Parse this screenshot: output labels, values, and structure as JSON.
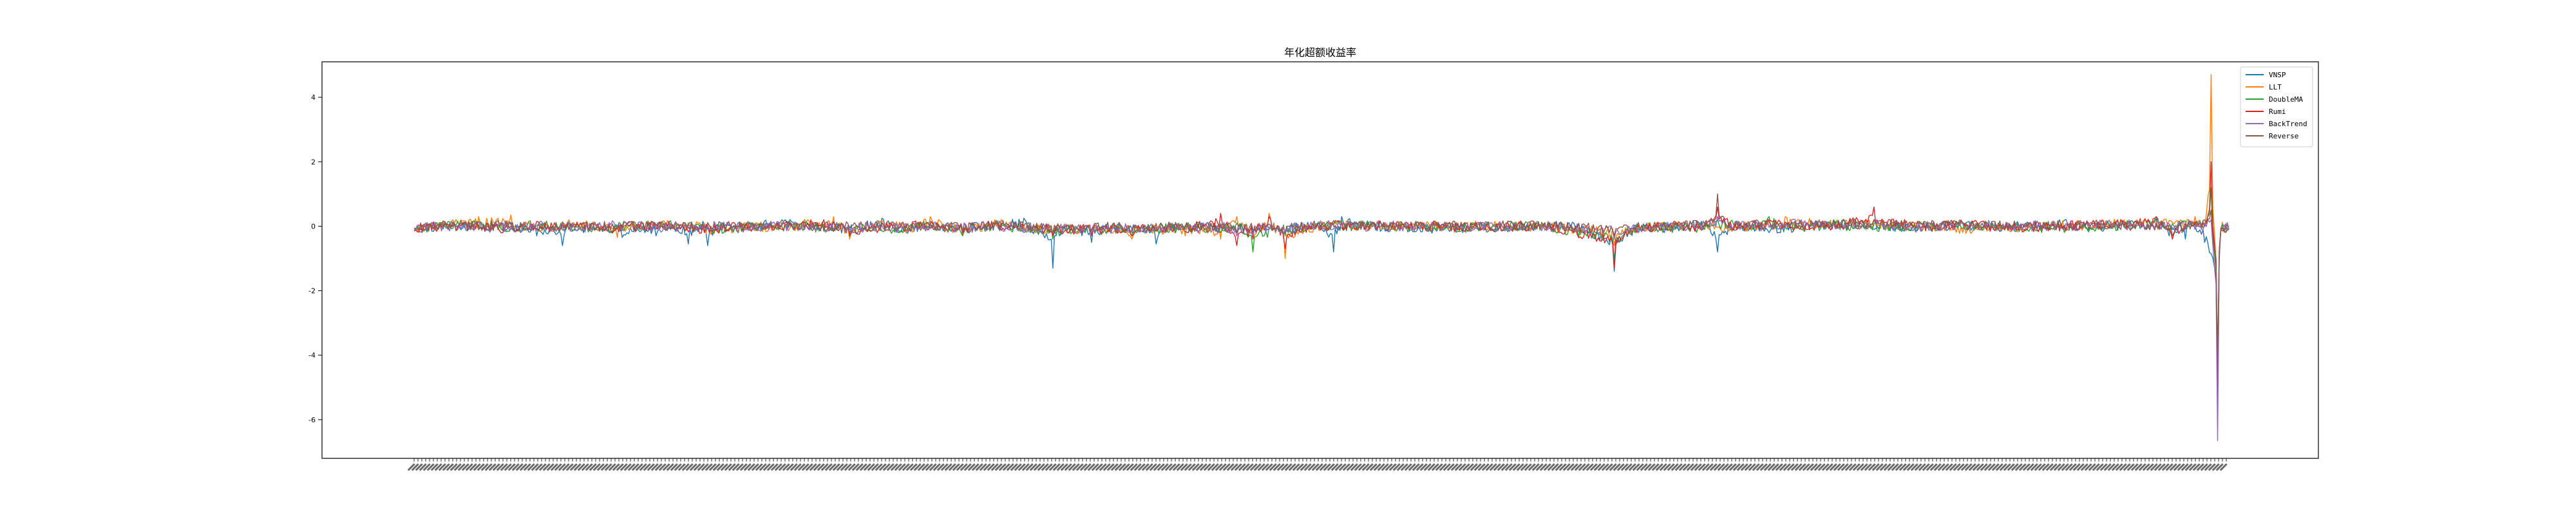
{
  "chart_data": {
    "type": "line",
    "title": "年化超额收益率",
    "xlabel": "",
    "ylabel": "",
    "ylim": [
      -7.2,
      5.1
    ],
    "yticks": [
      -6,
      -4,
      -2,
      0,
      2,
      4
    ],
    "legend_position": "top-right",
    "grid": false,
    "x_count": 300,
    "series": [
      {
        "name": "VNSP",
        "color": "#1f77b4",
        "events": [
          [
            0,
            -0.1
          ],
          [
            55,
            0.1
          ],
          [
            76,
            -0.3
          ],
          [
            92,
            -0.6
          ],
          [
            96,
            0.1
          ],
          [
            100,
            -0.12
          ],
          [
            108,
            -0.18
          ],
          [
            120,
            -0.1
          ],
          [
            129,
            -0.35
          ],
          [
            150,
            -0.3
          ],
          [
            160,
            0.05
          ],
          [
            170,
            -0.55
          ],
          [
            180,
            0.05
          ],
          [
            182,
            -0.6
          ],
          [
            190,
            -0.1
          ],
          [
            230,
            0.2
          ],
          [
            260,
            -0.1
          ],
          [
            270,
            -0.3
          ],
          [
            290,
            0.25
          ],
          [
            300,
            -0.1
          ],
          [
            305,
            -0.2
          ],
          [
            318,
            0.1
          ],
          [
            340,
            -0.25
          ],
          [
            360,
            0.1
          ],
          [
            378,
            0.25
          ],
          [
            396,
            -1.3
          ],
          [
            400,
            -0.3
          ],
          [
            420,
            -0.5
          ],
          [
            435,
            -0.1
          ],
          [
            460,
            -0.55
          ],
          [
            480,
            0.05
          ],
          [
            520,
            -0.2
          ],
          [
            540,
            -0.2
          ],
          [
            560,
            0.1
          ],
          [
            570,
            -0.8
          ],
          [
            575,
            0.3
          ],
          [
            600,
            -0.1
          ],
          [
            650,
            -0.2
          ],
          [
            700,
            0.05
          ],
          [
            720,
            -0.05
          ],
          [
            744,
            -1.4
          ],
          [
            760,
            -0.1
          ],
          [
            775,
            -0.2
          ],
          [
            800,
            0.1
          ],
          [
            808,
            -0.8
          ],
          [
            819,
            0.1
          ],
          [
            840,
            -0.2
          ],
          [
            880,
            0.1
          ],
          [
            900,
            0.0
          ],
          [
            940,
            -0.1
          ],
          [
            960,
            0.1
          ],
          [
            980,
            -0.05
          ],
          [
            1020,
            0.2
          ],
          [
            1040,
            -0.1
          ],
          [
            1080,
            0.25
          ],
          [
            1088,
            -0.3
          ],
          [
            1093,
            -0.2
          ],
          [
            1098,
            -0.4
          ],
          [
            1102,
            0.1
          ],
          [
            1110,
            -0.5
          ],
          [
            1118,
            -4.7
          ],
          [
            1120,
            -0.05
          ],
          [
            1125,
            -0.05
          ]
        ]
      },
      {
        "name": "LLT",
        "color": "#ff7f0e",
        "events": [
          [
            0,
            -0.15
          ],
          [
            40,
            0.3
          ],
          [
            60,
            0.35
          ],
          [
            80,
            -0.1
          ],
          [
            96,
            0.2
          ],
          [
            108,
            0.05
          ],
          [
            126,
            -0.35
          ],
          [
            150,
            0.05
          ],
          [
            170,
            0.05
          ],
          [
            184,
            -0.25
          ],
          [
            200,
            -0.15
          ],
          [
            230,
            0.05
          ],
          [
            260,
            0.3
          ],
          [
            270,
            -0.4
          ],
          [
            290,
            0.2
          ],
          [
            305,
            -0.2
          ],
          [
            320,
            0.3
          ],
          [
            340,
            -0.3
          ],
          [
            360,
            0.2
          ],
          [
            390,
            -0.2
          ],
          [
            396,
            -0.3
          ],
          [
            410,
            -0.2
          ],
          [
            445,
            -0.4
          ],
          [
            478,
            -0.3
          ],
          [
            500,
            -0.4
          ],
          [
            510,
            0.3
          ],
          [
            520,
            -0.4
          ],
          [
            530,
            0.4
          ],
          [
            540,
            -1.0
          ],
          [
            560,
            0.05
          ],
          [
            600,
            0.05
          ],
          [
            650,
            0.05
          ],
          [
            700,
            -0.05
          ],
          [
            744,
            -0.6
          ],
          [
            760,
            -0.1
          ],
          [
            800,
            0.1
          ],
          [
            820,
            -0.1
          ],
          [
            850,
            0.3
          ],
          [
            880,
            0.2
          ],
          [
            905,
            0.2
          ],
          [
            960,
            -0.2
          ],
          [
            1020,
            0.05
          ],
          [
            1060,
            0.2
          ],
          [
            1095,
            0.2
          ],
          [
            1104,
            0.3
          ],
          [
            1110,
            0.0
          ],
          [
            1114,
            4.7
          ],
          [
            1118,
            -6.0
          ],
          [
            1120,
            -0.1
          ],
          [
            1125,
            -0.1
          ]
        ]
      },
      {
        "name": "DoubleMA",
        "color": "#2ca02c",
        "events": [
          [
            0,
            -0.1
          ],
          [
            30,
            0.1
          ],
          [
            60,
            -0.05
          ],
          [
            80,
            0.1
          ],
          [
            96,
            0.1
          ],
          [
            108,
            -0.15
          ],
          [
            122,
            -0.2
          ],
          [
            140,
            0.05
          ],
          [
            170,
            0.05
          ],
          [
            180,
            -0.2
          ],
          [
            200,
            -0.15
          ],
          [
            230,
            0.05
          ],
          [
            270,
            -0.2
          ],
          [
            300,
            -0.2
          ],
          [
            320,
            0.1
          ],
          [
            340,
            -0.3
          ],
          [
            360,
            0.1
          ],
          [
            396,
            -0.4
          ],
          [
            420,
            -0.2
          ],
          [
            445,
            -0.3
          ],
          [
            478,
            -0.1
          ],
          [
            500,
            -0.2
          ],
          [
            510,
            0.1
          ],
          [
            520,
            -0.8
          ],
          [
            540,
            -0.3
          ],
          [
            560,
            0.05
          ],
          [
            600,
            0.05
          ],
          [
            650,
            -0.1
          ],
          [
            700,
            0.05
          ],
          [
            744,
            -1.1
          ],
          [
            760,
            -0.1
          ],
          [
            800,
            -0.1
          ],
          [
            808,
            0.2
          ],
          [
            830,
            -0.1
          ],
          [
            840,
            0.3
          ],
          [
            860,
            -0.1
          ],
          [
            880,
            0.2
          ],
          [
            900,
            -0.1
          ],
          [
            950,
            0.1
          ],
          [
            1000,
            -0.1
          ],
          [
            1040,
            -0.1
          ],
          [
            1080,
            0.2
          ],
          [
            1095,
            0.1
          ],
          [
            1104,
            0.1
          ],
          [
            1110,
            0.0
          ],
          [
            1114,
            1.2
          ],
          [
            1118,
            -5.6
          ],
          [
            1120,
            -0.1
          ],
          [
            1125,
            -0.1
          ]
        ]
      },
      {
        "name": "Rumi",
        "color": "#d62728",
        "events": [
          [
            0,
            -0.15
          ],
          [
            30,
            0.1
          ],
          [
            55,
            -0.2
          ],
          [
            76,
            0.15
          ],
          [
            92,
            0.05
          ],
          [
            108,
            -0.1
          ],
          [
            122,
            -0.15
          ],
          [
            150,
            0.05
          ],
          [
            180,
            -0.2
          ],
          [
            200,
            -0.1
          ],
          [
            230,
            0.1
          ],
          [
            260,
            0.15
          ],
          [
            270,
            -0.3
          ],
          [
            300,
            -0.1
          ],
          [
            320,
            0.1
          ],
          [
            340,
            -0.2
          ],
          [
            360,
            0.1
          ],
          [
            396,
            -0.3
          ],
          [
            420,
            -0.3
          ],
          [
            445,
            -0.3
          ],
          [
            480,
            -0.2
          ],
          [
            500,
            0.4
          ],
          [
            510,
            -0.6
          ],
          [
            520,
            -0.4
          ],
          [
            530,
            0.3
          ],
          [
            540,
            -0.7
          ],
          [
            560,
            0.05
          ],
          [
            600,
            0.05
          ],
          [
            650,
            -0.1
          ],
          [
            700,
            0.05
          ],
          [
            744,
            -1.3
          ],
          [
            760,
            -0.1
          ],
          [
            800,
            0.0
          ],
          [
            808,
            0.6
          ],
          [
            820,
            -0.1
          ],
          [
            840,
            0.2
          ],
          [
            860,
            0.0
          ],
          [
            880,
            0.1
          ],
          [
            905,
            0.6
          ],
          [
            930,
            0.0
          ],
          [
            960,
            0.1
          ],
          [
            1000,
            -0.1
          ],
          [
            1040,
            0.1
          ],
          [
            1080,
            0.3
          ],
          [
            1090,
            -0.4
          ],
          [
            1100,
            0.1
          ],
          [
            1110,
            0.0
          ],
          [
            1114,
            2.0
          ],
          [
            1118,
            -5.0
          ],
          [
            1120,
            -0.1
          ],
          [
            1125,
            0.0
          ]
        ]
      },
      {
        "name": "BackTrend",
        "color": "#9467bd",
        "events": [
          [
            0,
            -0.1
          ],
          [
            30,
            0.05
          ],
          [
            60,
            -0.1
          ],
          [
            80,
            0.05
          ],
          [
            100,
            -0.1
          ],
          [
            122,
            0.05
          ],
          [
            150,
            -0.1
          ],
          [
            180,
            0.05
          ],
          [
            200,
            -0.1
          ],
          [
            230,
            0.05
          ],
          [
            270,
            -0.1
          ],
          [
            300,
            -0.1
          ],
          [
            320,
            0.05
          ],
          [
            340,
            -0.15
          ],
          [
            360,
            0.05
          ],
          [
            396,
            -0.2
          ],
          [
            420,
            -0.2
          ],
          [
            445,
            -0.2
          ],
          [
            480,
            -0.1
          ],
          [
            510,
            -0.3
          ],
          [
            520,
            -0.3
          ],
          [
            540,
            -0.2
          ],
          [
            560,
            0.05
          ],
          [
            600,
            0.0
          ],
          [
            650,
            -0.05
          ],
          [
            700,
            0.0
          ],
          [
            744,
            -0.4
          ],
          [
            760,
            -0.1
          ],
          [
            800,
            0.1
          ],
          [
            808,
            0.3
          ],
          [
            830,
            0.0
          ],
          [
            860,
            0.2
          ],
          [
            880,
            0.1
          ],
          [
            905,
            0.2
          ],
          [
            930,
            -0.1
          ],
          [
            960,
            0.1
          ],
          [
            1000,
            0.0
          ],
          [
            1040,
            0.1
          ],
          [
            1080,
            0.1
          ],
          [
            1095,
            0.05
          ],
          [
            1110,
            0.1
          ],
          [
            1114,
            0.2
          ],
          [
            1118,
            -6.65
          ],
          [
            1120,
            -0.1
          ],
          [
            1125,
            -0.1
          ]
        ]
      },
      {
        "name": "Reverse",
        "color": "#8c564b",
        "events": [
          [
            0,
            -0.05
          ],
          [
            30,
            0.05
          ],
          [
            60,
            0.05
          ],
          [
            80,
            -0.1
          ],
          [
            100,
            0.05
          ],
          [
            122,
            -0.05
          ],
          [
            150,
            0.05
          ],
          [
            180,
            -0.05
          ],
          [
            200,
            0.0
          ],
          [
            230,
            0.05
          ],
          [
            270,
            -0.05
          ],
          [
            300,
            -0.05
          ],
          [
            340,
            -0.1
          ],
          [
            360,
            0.05
          ],
          [
            396,
            -0.2
          ],
          [
            420,
            -0.1
          ],
          [
            445,
            -0.1
          ],
          [
            480,
            -0.05
          ],
          [
            510,
            -0.2
          ],
          [
            520,
            -0.1
          ],
          [
            540,
            -0.2
          ],
          [
            560,
            0.05
          ],
          [
            600,
            0.0
          ],
          [
            650,
            0.0
          ],
          [
            700,
            0.05
          ],
          [
            744,
            -0.3
          ],
          [
            760,
            -0.1
          ],
          [
            800,
            0.1
          ],
          [
            808,
            1.0
          ],
          [
            815,
            0.0
          ],
          [
            840,
            0.2
          ],
          [
            860,
            0.1
          ],
          [
            880,
            0.2
          ],
          [
            905,
            0.2
          ],
          [
            930,
            0.1
          ],
          [
            960,
            0.1
          ],
          [
            1000,
            0.0
          ],
          [
            1040,
            0.1
          ],
          [
            1080,
            0.05
          ],
          [
            1090,
            -0.3
          ],
          [
            1100,
            0.1
          ],
          [
            1110,
            0.2
          ],
          [
            1114,
            0.5
          ],
          [
            1118,
            -4.0
          ],
          [
            1120,
            -0.1
          ],
          [
            1125,
            -0.1
          ]
        ]
      }
    ]
  }
}
